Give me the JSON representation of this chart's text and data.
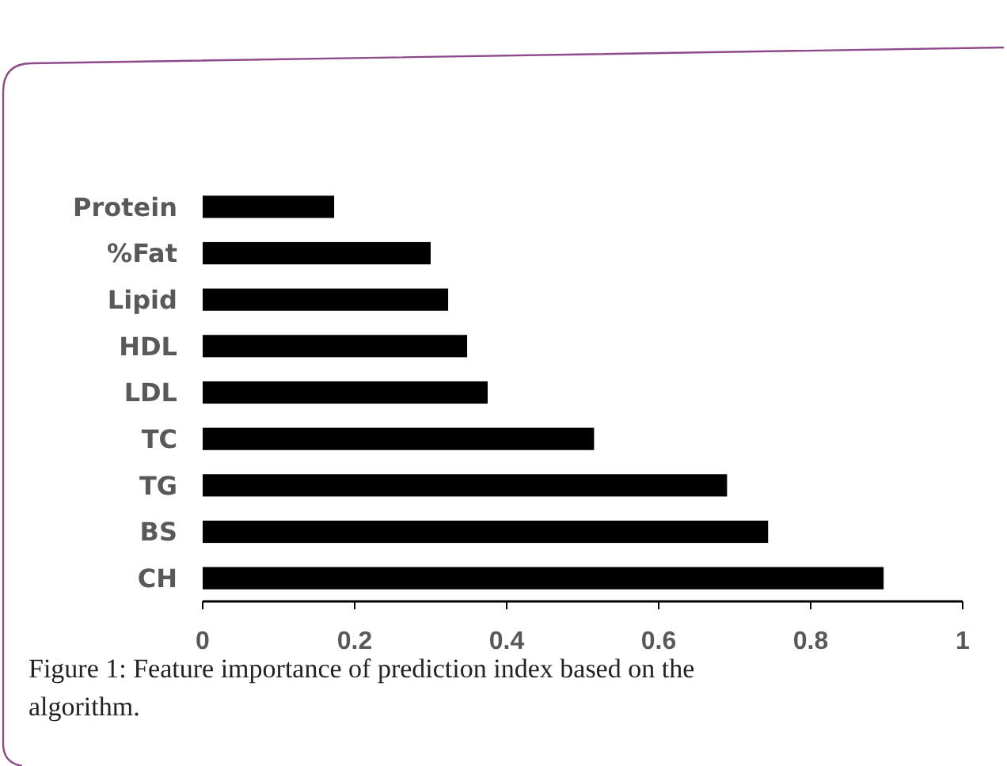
{
  "chart_data": {
    "type": "bar",
    "orientation": "horizontal",
    "categories": [
      "Protein",
      "%Fat",
      "Lipid",
      "HDL",
      "LDL",
      "TC",
      "TG",
      "BS",
      "CH"
    ],
    "values": [
      0.173,
      0.3,
      0.323,
      0.348,
      0.375,
      0.515,
      0.69,
      0.744,
      0.896
    ],
    "color": "#000000",
    "xlim": [
      0,
      1
    ],
    "xticks": [
      0,
      0.2,
      0.4,
      0.6,
      0.8,
      1
    ],
    "grid": false,
    "annotations": [
      "Figure 1: Feature importance of prediction index based on the algorithm."
    ]
  }
}
